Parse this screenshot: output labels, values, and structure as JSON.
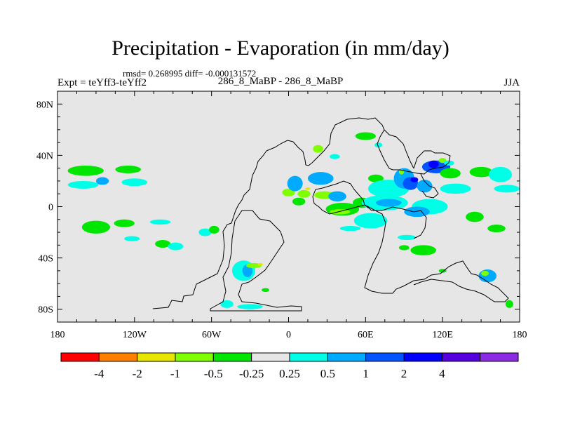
{
  "chart_data": {
    "type": "heatmap",
    "title": "Precipitation - Evaporation (in mm/day)",
    "stats_line": "rmsd= 0.268995  diff= -0.000131572",
    "left_label": "Expt = teYff3-teYff2",
    "center_label": "286_8_MaBP - 286_8_MaBP",
    "right_label": "JJA",
    "x_ticks": [
      "180",
      "120W",
      "60W",
      "0",
      "60E",
      "120E",
      "180"
    ],
    "x_tick_values": [
      -180,
      -120,
      -60,
      0,
      60,
      120,
      180
    ],
    "y_ticks": [
      "80N",
      "40N",
      "0",
      "40S",
      "80S"
    ],
    "y_tick_values": [
      80,
      40,
      0,
      -40,
      -80
    ],
    "xlim": [
      -180,
      180
    ],
    "ylim": [
      -90,
      90
    ],
    "colorbar": {
      "colors": [
        "#ff0000",
        "#ff8000",
        "#e6e600",
        "#80ff00",
        "#00e600",
        "#e6e6e6",
        "#00ffe6",
        "#00aaff",
        "#0055ff",
        "#0000ff",
        "#5500dd",
        "#8b2be2"
      ],
      "labels": [
        "-4",
        "-2",
        "-1",
        "-0.5",
        "-0.25",
        "0.25",
        "0.5",
        "1",
        "2",
        "4"
      ]
    },
    "background_color": "#e6e6e6",
    "anomaly_patches": [
      {
        "lon": -158,
        "lat": 28,
        "rx": 14,
        "ry": 4,
        "level": "-0.25"
      },
      {
        "lon": -160,
        "lat": 17,
        "rx": 12,
        "ry": 3,
        "level": "0.25"
      },
      {
        "lon": -145,
        "lat": 20,
        "rx": 5,
        "ry": 3,
        "level": "0.5"
      },
      {
        "lon": -125,
        "lat": 29,
        "rx": 10,
        "ry": 3,
        "level": "-0.25"
      },
      {
        "lon": -120,
        "lat": 19,
        "rx": 10,
        "ry": 3,
        "level": "0.25"
      },
      {
        "lon": -150,
        "lat": -16,
        "rx": 11,
        "ry": 5,
        "level": "-0.25"
      },
      {
        "lon": -128,
        "lat": -13,
        "rx": 8,
        "ry": 3,
        "level": "-0.25"
      },
      {
        "lon": -100,
        "lat": -12,
        "rx": 8,
        "ry": 2,
        "level": "0.25"
      },
      {
        "lon": -98,
        "lat": -29,
        "rx": 6,
        "ry": 3,
        "level": "-0.25"
      },
      {
        "lon": -88,
        "lat": -31,
        "rx": 6,
        "ry": 3,
        "level": "0.25"
      },
      {
        "lon": -122,
        "lat": -25,
        "rx": 6,
        "ry": 2,
        "level": "0.25"
      },
      {
        "lon": -65,
        "lat": -20,
        "rx": 5,
        "ry": 3,
        "level": "0.25"
      },
      {
        "lon": -58,
        "lat": -18,
        "rx": 4,
        "ry": 3,
        "level": "-0.25"
      },
      {
        "lon": -35,
        "lat": -50,
        "rx": 9,
        "ry": 8,
        "level": "0.25"
      },
      {
        "lon": -32,
        "lat": -50,
        "rx": 4,
        "ry": 5,
        "level": "0.5"
      },
      {
        "lon": -27,
        "lat": -46,
        "rx": 6,
        "ry": 2,
        "level": "-0.5"
      },
      {
        "lon": -22,
        "lat": -45,
        "rx": 2,
        "ry": 1,
        "level": "-1"
      },
      {
        "lon": -48,
        "lat": -76,
        "rx": 5,
        "ry": 3,
        "level": "0.25"
      },
      {
        "lon": -30,
        "lat": -78,
        "rx": 10,
        "ry": 2,
        "level": "0.25"
      },
      {
        "lon": 0,
        "lat": 11,
        "rx": 5,
        "ry": 3,
        "level": "-0.5"
      },
      {
        "lon": 5,
        "lat": 18,
        "rx": 6,
        "ry": 6,
        "level": "0.5"
      },
      {
        "lon": 12,
        "lat": 10,
        "rx": 5,
        "ry": 3,
        "level": "-0.5"
      },
      {
        "lon": 15,
        "lat": 14,
        "rx": 2,
        "ry": 1,
        "level": "-1"
      },
      {
        "lon": 28,
        "lat": 9,
        "rx": 8,
        "ry": 3,
        "level": "-0.5"
      },
      {
        "lon": 8,
        "lat": 4,
        "rx": 5,
        "ry": 3,
        "level": "-0.25"
      },
      {
        "lon": 38,
        "lat": 8,
        "rx": 7,
        "ry": 4,
        "level": "0.5"
      },
      {
        "lon": 25,
        "lat": 22,
        "rx": 10,
        "ry": 5,
        "level": "0.5"
      },
      {
        "lon": 23,
        "lat": 45,
        "rx": 4,
        "ry": 3,
        "level": "-0.5"
      },
      {
        "lon": 36,
        "lat": 39,
        "rx": 4,
        "ry": 2,
        "level": "0.25"
      },
      {
        "lon": 42,
        "lat": -2,
        "rx": 13,
        "ry": 5,
        "level": "-0.25"
      },
      {
        "lon": 40,
        "lat": -4,
        "rx": 8,
        "ry": 2,
        "level": "-0.5"
      },
      {
        "lon": 48,
        "lat": -17,
        "rx": 8,
        "ry": 2,
        "level": "0.25"
      },
      {
        "lon": 57,
        "lat": 3,
        "rx": 7,
        "ry": 4,
        "level": "-0.25"
      },
      {
        "lon": 60,
        "lat": 55,
        "rx": 8,
        "ry": 3,
        "level": "-0.25"
      },
      {
        "lon": 70,
        "lat": 48,
        "rx": 3,
        "ry": 2,
        "level": "0.25"
      },
      {
        "lon": 68,
        "lat": 22,
        "rx": 6,
        "ry": 3,
        "level": "-0.25"
      },
      {
        "lon": 78,
        "lat": 14,
        "rx": 16,
        "ry": 7,
        "level": "0.25"
      },
      {
        "lon": 75,
        "lat": 3,
        "rx": 18,
        "ry": 6,
        "level": "0.25"
      },
      {
        "lon": 78,
        "lat": 3,
        "rx": 10,
        "ry": 3,
        "level": "0.5"
      },
      {
        "lon": 64,
        "lat": -11,
        "rx": 13,
        "ry": 6,
        "level": "0.25"
      },
      {
        "lon": 90,
        "lat": 22,
        "rx": 8,
        "ry": 8,
        "level": "0.5"
      },
      {
        "lon": 95,
        "lat": 18,
        "rx": 6,
        "ry": 5,
        "level": "1"
      },
      {
        "lon": 98,
        "lat": 21,
        "rx": 3,
        "ry": 2,
        "level": "2"
      },
      {
        "lon": 88,
        "lat": 27,
        "rx": 2,
        "ry": 2,
        "level": "-0.5"
      },
      {
        "lon": 106,
        "lat": 16,
        "rx": 6,
        "ry": 5,
        "level": "0.5"
      },
      {
        "lon": 115,
        "lat": 31,
        "rx": 11,
        "ry": 5,
        "level": "1"
      },
      {
        "lon": 113,
        "lat": 33,
        "rx": 4,
        "ry": 3,
        "level": "2"
      },
      {
        "lon": 120,
        "lat": 36,
        "rx": 3,
        "ry": 2,
        "level": "-0.5"
      },
      {
        "lon": 125,
        "lat": 34,
        "rx": 4,
        "ry": 2,
        "level": "0.25"
      },
      {
        "lon": 130,
        "lat": 14,
        "rx": 12,
        "ry": 4,
        "level": "0.25"
      },
      {
        "lon": 126,
        "lat": 26,
        "rx": 8,
        "ry": 4,
        "level": "-0.25"
      },
      {
        "lon": 110,
        "lat": 0,
        "rx": 14,
        "ry": 6,
        "level": "0.25"
      },
      {
        "lon": 100,
        "lat": -4,
        "rx": 10,
        "ry": 4,
        "level": "0.5"
      },
      {
        "lon": 150,
        "lat": 27,
        "rx": 9,
        "ry": 4,
        "level": "-0.25"
      },
      {
        "lon": 165,
        "lat": 25,
        "rx": 9,
        "ry": 6,
        "level": "0.25"
      },
      {
        "lon": 170,
        "lat": 14,
        "rx": 10,
        "ry": 3,
        "level": "0.25"
      },
      {
        "lon": 145,
        "lat": -8,
        "rx": 7,
        "ry": 4,
        "level": "-0.25"
      },
      {
        "lon": 162,
        "lat": -17,
        "rx": 7,
        "ry": 3,
        "level": "-0.25"
      },
      {
        "lon": 105,
        "lat": -34,
        "rx": 10,
        "ry": 4,
        "level": "-0.25"
      },
      {
        "lon": 90,
        "lat": -32,
        "rx": 4,
        "ry": 2,
        "level": "-0.25"
      },
      {
        "lon": 92,
        "lat": -24,
        "rx": 7,
        "ry": 2,
        "level": "0.25"
      },
      {
        "lon": 155,
        "lat": -54,
        "rx": 7,
        "ry": 5,
        "level": "0.5"
      },
      {
        "lon": 153,
        "lat": -52,
        "rx": 3,
        "ry": 2,
        "level": "-0.5"
      },
      {
        "lon": 172,
        "lat": -76,
        "rx": 3,
        "ry": 3,
        "level": "-0.25"
      },
      {
        "lon": 120,
        "lat": -50,
        "rx": 3,
        "ry": 1.5,
        "level": "-0.25"
      },
      {
        "lon": -18,
        "lat": -65,
        "rx": 3,
        "ry": 1.5,
        "level": "-0.25"
      }
    ]
  }
}
